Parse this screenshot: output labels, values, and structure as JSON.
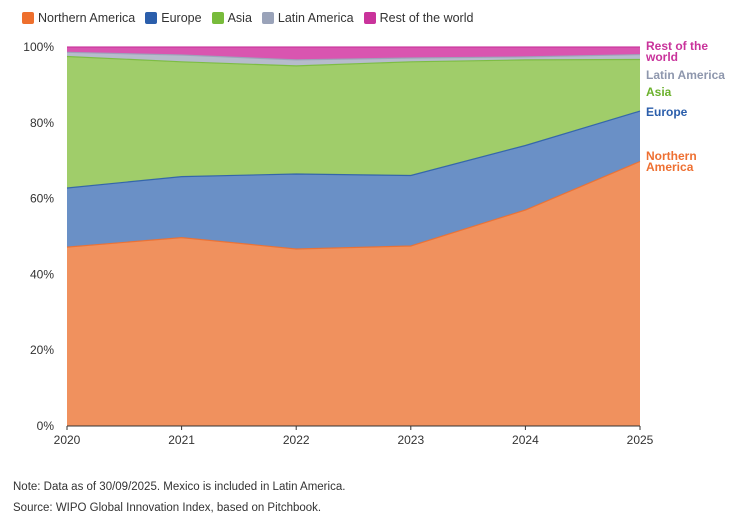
{
  "chart_data": {
    "type": "area",
    "stacked": true,
    "categories": [
      "2020",
      "2021",
      "2022",
      "2023",
      "2024",
      "2025"
    ],
    "ylim": [
      0,
      100
    ],
    "yticks": [
      "0%",
      "20%",
      "40%",
      "60%",
      "80%",
      "100%"
    ],
    "series": [
      {
        "name": "Northern America",
        "end_label": "Northern America",
        "color": "#f0915e",
        "legend_color": "#ee6f2d",
        "label_color": "#ee7032",
        "values": [
          47.2,
          49.7,
          46.7,
          47.5,
          57.0,
          69.8
        ]
      },
      {
        "name": "Europe",
        "end_label": "Europe",
        "color": "#6a90c6",
        "legend_color": "#2b5eab",
        "label_color": "#2b5eab",
        "values": [
          15.6,
          16.1,
          19.8,
          18.6,
          17.0,
          13.3
        ]
      },
      {
        "name": "Asia",
        "end_label": "Asia",
        "color": "#a0cd6a",
        "legend_color": "#78bb3b",
        "label_color": "#6bb12c",
        "values": [
          34.7,
          30.3,
          28.5,
          30.0,
          22.6,
          13.6
        ]
      },
      {
        "name": "Latin America",
        "end_label": "Latin America",
        "color": "#b6bccc",
        "legend_color": "#9aa3b9",
        "label_color": "#8e97ad",
        "values": [
          1.1,
          1.8,
          1.6,
          1.0,
          0.8,
          1.3
        ]
      },
      {
        "name": "Rest of the world",
        "end_label": "Rest of the world",
        "color": "#d955b0",
        "legend_color": "#c9339b",
        "label_color": "#c9339b",
        "values": [
          1.4,
          2.1,
          3.4,
          2.9,
          2.6,
          2.0
        ]
      }
    ],
    "title": "",
    "xlabel": "",
    "ylabel": "",
    "grid": false,
    "legend": "top-left"
  },
  "notes": {
    "note": "Note: Data as of 30/09/2025. Mexico is included in Latin America.",
    "source": "Source: WIPO Global Innovation Index, based on Pitchbook."
  }
}
